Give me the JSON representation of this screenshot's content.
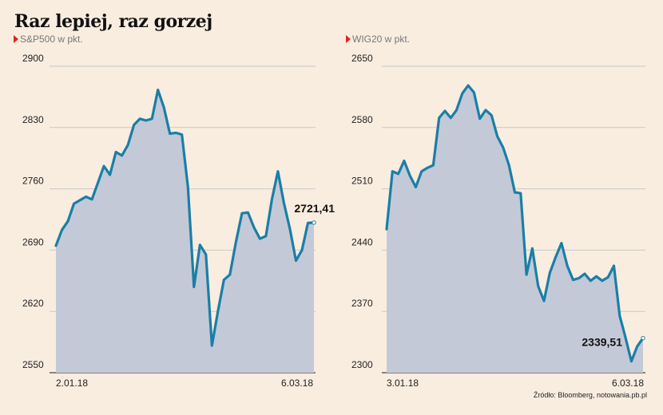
{
  "title": "Raz lepiej, raz gorzej",
  "source": "Źródło: Bloomberg, notowania.pb.pl",
  "colors": {
    "line": "#1a7fa6",
    "area": "#c4c9d7",
    "grid": "#c8c8c8",
    "bg": "#f9ede0",
    "marker": "#e2231a"
  },
  "chart_data": [
    {
      "type": "area",
      "series_name": "S&P500 w pkt.",
      "title": "S&P500 w pkt.",
      "ylim": [
        2550,
        2900
      ],
      "yticks": [
        "2900",
        "2830",
        "2760",
        "2690",
        "2620",
        "2550"
      ],
      "start_date": "2.01.18",
      "end_date": "6.03.18",
      "last_label": "2721,41",
      "values": [
        2695,
        2713,
        2723,
        2743,
        2747,
        2751,
        2748,
        2767,
        2786,
        2776,
        2802,
        2798,
        2810,
        2833,
        2840,
        2838,
        2840,
        2873,
        2853,
        2823,
        2824,
        2822,
        2762,
        2648,
        2696,
        2685,
        2581,
        2620,
        2656,
        2662,
        2699,
        2732,
        2733,
        2716,
        2703,
        2706,
        2748,
        2780,
        2744,
        2714,
        2678,
        2690,
        2721,
        2721.41
      ]
    },
    {
      "type": "area",
      "series_name": "WIG20 w pkt.",
      "title": "WIG20 w pkt.",
      "ylim": [
        2300,
        2650
      ],
      "yticks": [
        "2650",
        "2580",
        "2510",
        "2440",
        "2370",
        "2300"
      ],
      "start_date": "3.01.18",
      "end_date": "6.03.18",
      "last_label": "2339,51",
      "values": [
        2464,
        2530,
        2527,
        2542,
        2525,
        2512,
        2530,
        2534,
        2537,
        2591,
        2599,
        2591,
        2600,
        2619,
        2628,
        2620,
        2590,
        2600,
        2594,
        2570,
        2557,
        2537,
        2506,
        2505,
        2412,
        2442,
        2399,
        2382,
        2414,
        2432,
        2448,
        2422,
        2406,
        2408,
        2413,
        2405,
        2410,
        2405,
        2409,
        2422,
        2365,
        2340,
        2313,
        2330,
        2339.51
      ]
    }
  ]
}
